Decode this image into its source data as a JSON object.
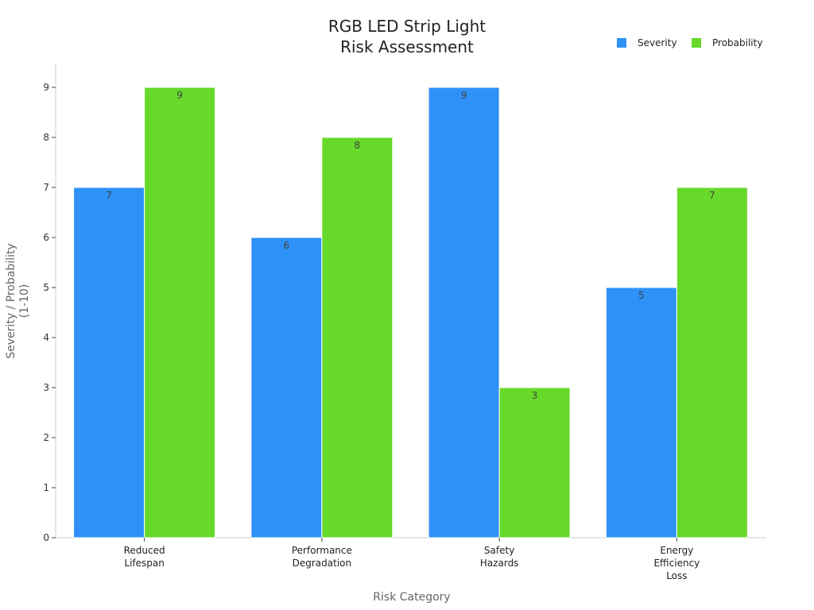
{
  "chart_data": {
    "type": "bar",
    "title": [
      "RGB LED Strip Light",
      "Risk Assessment"
    ],
    "xlabel": "Risk Category",
    "ylabel": [
      "Severity / Probability",
      "(1-10)"
    ],
    "categories": [
      [
        "Reduced",
        "Lifespan"
      ],
      [
        "Performance",
        "Degradation"
      ],
      [
        "Safety",
        "Hazards"
      ],
      [
        "Energy",
        "Efficiency",
        "Loss"
      ]
    ],
    "series": [
      {
        "name": "Severity",
        "color": "#2E91F8",
        "values": [
          7,
          6,
          9,
          5
        ]
      },
      {
        "name": "Probability",
        "color": "#66D92A",
        "values": [
          9,
          8,
          3,
          7
        ]
      }
    ],
    "ylim": [
      0,
      9.5
    ],
    "yticks": [
      0,
      1,
      2,
      3,
      4,
      5,
      6,
      7,
      8,
      9
    ],
    "legend": "top-right",
    "grid": false
  }
}
